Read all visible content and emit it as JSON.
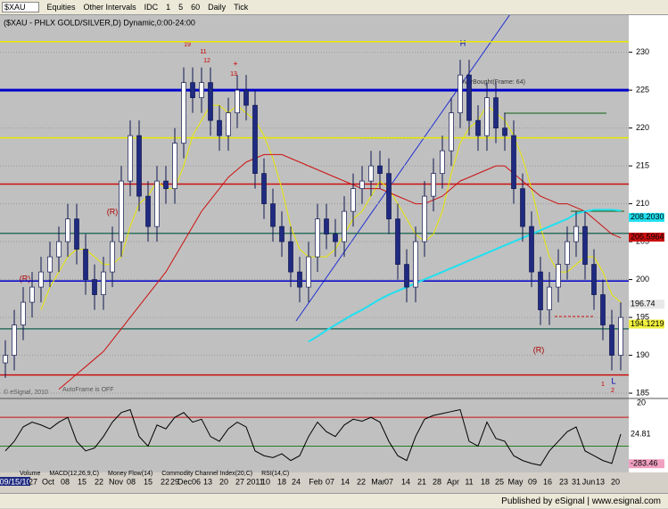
{
  "toolbar": {
    "symbol": "$XAU",
    "items": [
      "Equities",
      "Other Intervals",
      "IDC",
      "1",
      "5",
      "60",
      "Daily",
      "Tick"
    ]
  },
  "chart_data": {
    "type": "candlestick",
    "title": "($XAU - PHLX GOLD/SILVER,D) Dynamic,0:00-24:00",
    "up_color": "#ffffff",
    "down_color": "#1f2a80",
    "wick_color": "#10184f",
    "open": [
      189,
      190,
      194,
      197,
      199,
      201,
      203,
      205,
      208,
      204,
      200,
      198,
      201,
      205,
      213,
      219,
      211,
      207,
      213,
      212,
      218,
      226,
      224,
      226,
      221,
      219,
      222,
      225,
      223,
      214,
      210,
      207,
      205,
      201,
      199,
      203,
      208,
      206,
      205,
      209,
      212,
      213,
      215,
      214,
      208,
      202,
      199,
      205,
      211,
      214,
      217,
      222,
      227,
      221,
      219,
      224,
      220,
      219,
      212,
      207,
      201,
      196,
      199,
      202,
      205,
      207,
      202,
      198,
      194,
      190
    ],
    "high": [
      192,
      196,
      199,
      201,
      203,
      205,
      207,
      210,
      210,
      206,
      202,
      203,
      207,
      215,
      221,
      221,
      213,
      215,
      215,
      220,
      228,
      228,
      228,
      228,
      223,
      224,
      227,
      227,
      225,
      216,
      212,
      209,
      207,
      203,
      205,
      210,
      210,
      208,
      211,
      214,
      215,
      217,
      217,
      216,
      210,
      204,
      207,
      213,
      216,
      219,
      224,
      229,
      229,
      223,
      226,
      226,
      222,
      221,
      214,
      209,
      203,
      201,
      204,
      207,
      209,
      209,
      204,
      200,
      196,
      197
    ],
    "low": [
      187,
      188,
      192,
      195,
      197,
      199,
      201,
      203,
      202,
      198,
      196,
      196,
      199,
      203,
      211,
      209,
      205,
      205,
      210,
      210,
      216,
      222,
      222,
      219,
      217,
      217,
      220,
      221,
      212,
      208,
      205,
      203,
      199,
      197,
      197,
      201,
      204,
      203,
      203,
      207,
      210,
      211,
      212,
      206,
      200,
      197,
      197,
      203,
      209,
      212,
      215,
      220,
      219,
      217,
      217,
      218,
      217,
      210,
      205,
      199,
      194,
      194,
      197,
      200,
      203,
      200,
      196,
      192,
      188,
      188
    ],
    "close": [
      190,
      194,
      197,
      199,
      201,
      203,
      205,
      208,
      204,
      200,
      198,
      201,
      205,
      213,
      219,
      211,
      207,
      213,
      212,
      218,
      226,
      224,
      226,
      221,
      219,
      222,
      225,
      223,
      214,
      210,
      207,
      205,
      201,
      199,
      203,
      208,
      206,
      205,
      209,
      212,
      213,
      215,
      214,
      208,
      202,
      199,
      205,
      211,
      214,
      217,
      222,
      227,
      221,
      219,
      224,
      220,
      219,
      212,
      207,
      201,
      196,
      199,
      202,
      205,
      207,
      202,
      198,
      194,
      190,
      195
    ],
    "series": [
      {
        "color": "#e8e800",
        "values": [
          null,
          null,
          null,
          null,
          196,
          199,
          201,
          203,
          204,
          204,
          203,
          202,
          202,
          203,
          207,
          210,
          211,
          213,
          212,
          212,
          215,
          219,
          221,
          223,
          223,
          222,
          223,
          222,
          221,
          219,
          216,
          212,
          207,
          204,
          203,
          203,
          203,
          204,
          206,
          208,
          209,
          211,
          213,
          212,
          210,
          208,
          206,
          205,
          206,
          209,
          214,
          218,
          220,
          221,
          223,
          222,
          221,
          219,
          216,
          212,
          207,
          203,
          201,
          201,
          202,
          203,
          203,
          201,
          198,
          197
        ]
      },
      {
        "color": "#cc1010",
        "values": [
          null,
          null,
          null,
          null,
          null,
          null,
          185.5,
          186.5,
          187.5,
          188.5,
          189.5,
          190.5,
          192,
          193.5,
          195,
          196.5,
          198,
          199.5,
          201,
          203,
          205,
          207,
          209,
          210.5,
          212,
          213.5,
          214.5,
          215.5,
          216,
          216.5,
          216.5,
          216.5,
          216,
          215.5,
          215,
          214.5,
          214,
          213.5,
          213,
          212.5,
          212,
          212,
          212,
          211.5,
          211,
          210.5,
          210,
          210,
          210.5,
          211,
          212,
          213,
          213.5,
          214,
          214.5,
          215,
          215,
          214,
          213,
          212,
          211,
          210.5,
          210,
          210,
          209.5,
          209,
          208,
          207,
          206,
          205.5
        ]
      },
      {
        "color": "#20e0f0",
        "values": [
          null,
          null,
          null,
          null,
          null,
          null,
          null,
          null,
          null,
          null,
          null,
          null,
          null,
          null,
          null,
          null,
          null,
          null,
          null,
          null,
          null,
          null,
          null,
          null,
          null,
          null,
          null,
          null,
          null,
          null,
          null,
          null,
          null,
          null,
          191.8,
          192.5,
          193.3,
          194,
          194.7,
          195.4,
          196,
          196.7,
          197.4,
          198,
          198.5,
          199,
          199.5,
          200,
          200.5,
          201,
          201.5,
          202,
          202.5,
          203,
          203.5,
          204,
          204.5,
          205,
          205.5,
          206,
          206.5,
          207,
          207.5,
          208,
          208.7,
          209,
          209.2,
          209.2,
          209.2,
          209.1
        ]
      }
    ],
    "levels": [
      {
        "value": 231.4,
        "color": "#e8e800"
      },
      {
        "value": 225,
        "color": "#0000cc",
        "bold": true
      },
      {
        "value": 218.7,
        "color": "#e8e800"
      },
      {
        "value": 212.6,
        "color": "#cc1010"
      },
      {
        "value": 206.1,
        "color": "#2f6f5f"
      },
      {
        "value": 199.8,
        "color": "#0000cc"
      },
      {
        "value": 193.5,
        "color": "#2f6f5f"
      },
      {
        "value": 187.4,
        "color": "#cc1010"
      }
    ],
    "value_flags": [
      {
        "value": 208.203,
        "label": "208.2030",
        "color": "#20e0f0"
      },
      {
        "value": 205.5964,
        "color": "#cc1010"
      },
      {
        "value": 196.74,
        "color": "#e8e8e8"
      },
      {
        "value": 194.1219,
        "color": "#f0f040"
      }
    ],
    "ylim": [
      184.3,
      234.9
    ],
    "yticks": [
      185,
      190,
      195,
      200,
      205,
      210,
      215,
      220,
      225,
      230
    ],
    "grid": true,
    "x_labels": [
      "09/15/10",
      "27",
      "Oct",
      "08",
      "15",
      "22",
      "Nov",
      "08",
      "15",
      "22",
      "29",
      "Dec",
      "06",
      "13",
      "20",
      "27",
      "2011",
      "10",
      "18",
      "24",
      "Feb",
      "07",
      "14",
      "22",
      "Mar",
      "07",
      "14",
      "21",
      "28",
      "Apr",
      "11",
      "18",
      "25",
      "May",
      "09",
      "16",
      "23",
      "31",
      "Jun",
      "13",
      "20"
    ],
    "annotations": [
      "H",
      "L",
      "(R)",
      "(R)",
      "(R)",
      "OverBought(Frame: 64)",
      "AutoFrame is OFF",
      "© eSignal, 2010",
      "19",
      "11",
      "12",
      "13",
      "+",
      "1",
      "2"
    ],
    "indicator": {
      "scale_label": "20",
      "ylim": [
        -300,
        350
      ],
      "levels": [
        {
          "value": 200,
          "color": "#cc1010"
        },
        {
          "value": -100,
          "color": "#208020"
        }
      ],
      "values": [
        -150,
        -50,
        100,
        150,
        120,
        80,
        150,
        200,
        -50,
        -150,
        -120,
        0,
        150,
        250,
        280,
        0,
        -100,
        120,
        80,
        200,
        250,
        150,
        180,
        0,
        -50,
        80,
        150,
        100,
        -150,
        -200,
        -220,
        -180,
        -250,
        -200,
        0,
        150,
        50,
        0,
        120,
        180,
        160,
        200,
        150,
        -50,
        -200,
        -250,
        0,
        180,
        220,
        240,
        260,
        280,
        -50,
        -100,
        150,
        -20,
        -50,
        -200,
        -250,
        -280,
        -300,
        -150,
        -50,
        50,
        100,
        -150,
        -200,
        -250,
        -280,
        24.81
      ],
      "value_flags": [
        {
          "value": 24.81,
          "color": "#ffffff"
        },
        {
          "value": -283.46,
          "color": "#f0a0c0"
        }
      ]
    }
  },
  "indicator_tabs": [
    "Volume",
    "MACD(12,26,9,C)",
    "Money Flow(14)",
    "Commodity Channel Index(20,C)",
    "RSI(14,C)"
  ],
  "footer": {
    "published": "Published by eSignal",
    "url": "www.esignal.com"
  }
}
